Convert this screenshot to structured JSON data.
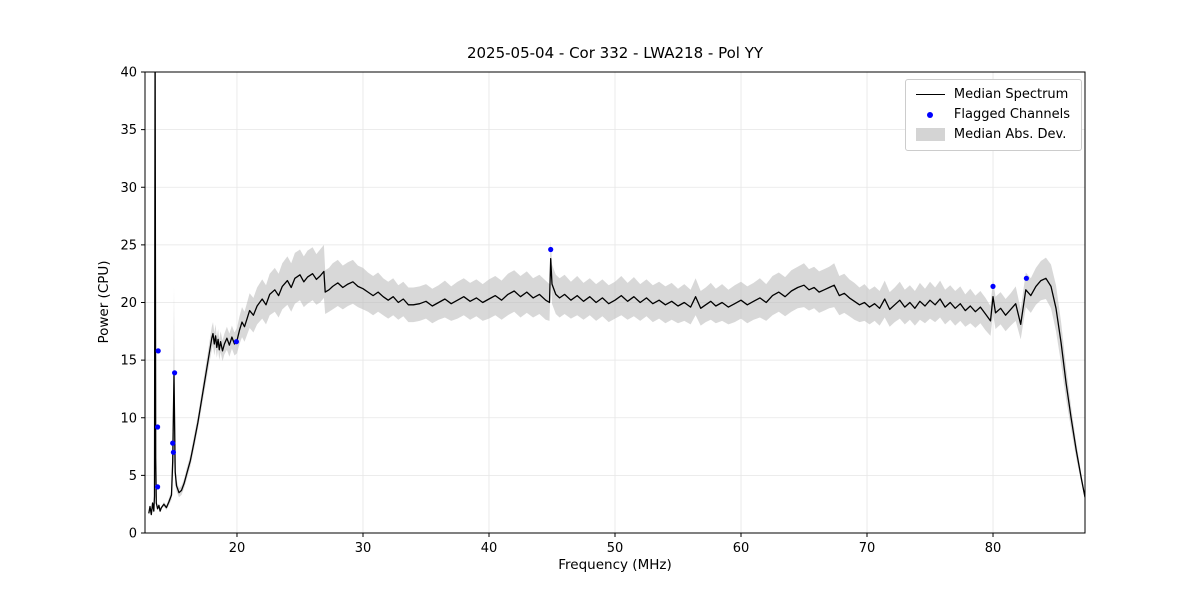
{
  "chart_data": {
    "type": "line",
    "title": "2025-05-04 - Cor 332 - LWA218 - Pol YY",
    "xlabel": "Frequency (MHz)",
    "ylabel": "Power (CPU)",
    "xlim": [
      12.7,
      87.3
    ],
    "ylim": [
      0,
      40
    ],
    "xticks": [
      20,
      30,
      40,
      50,
      60,
      70,
      80
    ],
    "yticks": [
      0,
      5,
      10,
      15,
      20,
      25,
      30,
      35,
      40
    ],
    "grid": true,
    "legend": [
      {
        "label": "Median Spectrum",
        "marker": "line",
        "color": "#000000"
      },
      {
        "label": "Flagged Channels",
        "marker": "dot",
        "color": "#0000ff"
      },
      {
        "label": "Median Abs. Dev.",
        "marker": "patch",
        "color": "#d4d4d4"
      }
    ],
    "colors": {
      "line": "#000000",
      "flagged": "#0000ff",
      "band": "#b8b8b8",
      "band_opacity": 0.55,
      "grid": "#e6e6e6",
      "frame": "#000000"
    },
    "series_note": "spectrum triplets are [frequency_MHz, median_power, median_abs_dev]; band is median±mad",
    "spectrum": [
      [
        13.0,
        1.7,
        0.1
      ],
      [
        13.1,
        2.3,
        0.1
      ],
      [
        13.2,
        1.6,
        0.1
      ],
      [
        13.3,
        2.6,
        0.1
      ],
      [
        13.4,
        1.9,
        0.2
      ],
      [
        13.45,
        3.2,
        0.2
      ],
      [
        13.5,
        44.0,
        0.3
      ],
      [
        13.55,
        6.5,
        0.3
      ],
      [
        13.6,
        2.6,
        0.2
      ],
      [
        13.7,
        2.1,
        0.1
      ],
      [
        13.8,
        2.4,
        0.1
      ],
      [
        13.9,
        1.9,
        0.1
      ],
      [
        14.0,
        2.2,
        0.1
      ],
      [
        14.2,
        2.5,
        0.2
      ],
      [
        14.4,
        2.2,
        0.2
      ],
      [
        14.6,
        2.7,
        0.3
      ],
      [
        14.8,
        3.3,
        0.4
      ],
      [
        14.9,
        6.2,
        1.5
      ],
      [
        15.0,
        13.8,
        7.5
      ],
      [
        15.1,
        5.3,
        1.0
      ],
      [
        15.2,
        4.1,
        0.5
      ],
      [
        15.4,
        3.5,
        0.4
      ],
      [
        15.6,
        3.7,
        0.4
      ],
      [
        15.8,
        4.3,
        0.4
      ],
      [
        16.0,
        5.1,
        0.5
      ],
      [
        16.3,
        6.3,
        0.5
      ],
      [
        16.6,
        7.9,
        0.6
      ],
      [
        16.9,
        9.6,
        0.6
      ],
      [
        17.2,
        11.6,
        0.7
      ],
      [
        17.5,
        13.6,
        0.8
      ],
      [
        17.8,
        15.6,
        0.9
      ],
      [
        18.0,
        16.9,
        1.0
      ],
      [
        18.1,
        17.3,
        1.0
      ],
      [
        18.2,
        16.4,
        1.0
      ],
      [
        18.3,
        17.1,
        1.0
      ],
      [
        18.4,
        16.1,
        0.9
      ],
      [
        18.5,
        16.8,
        0.9
      ],
      [
        18.6,
        15.9,
        0.9
      ],
      [
        18.7,
        16.6,
        0.9
      ],
      [
        18.85,
        15.8,
        0.9
      ],
      [
        19.0,
        16.4,
        0.9
      ],
      [
        19.2,
        16.9,
        1.0
      ],
      [
        19.4,
        16.3,
        1.0
      ],
      [
        19.6,
        17.0,
        1.0
      ],
      [
        19.8,
        16.4,
        1.0
      ],
      [
        20.0,
        16.7,
        1.1
      ],
      [
        20.2,
        17.6,
        1.2
      ],
      [
        20.4,
        18.3,
        1.3
      ],
      [
        20.6,
        17.9,
        1.3
      ],
      [
        20.8,
        18.6,
        1.4
      ],
      [
        21.0,
        19.3,
        1.5
      ],
      [
        21.3,
        18.9,
        1.5
      ],
      [
        21.6,
        19.7,
        1.6
      ],
      [
        22.0,
        20.3,
        1.7
      ],
      [
        22.3,
        19.8,
        1.7
      ],
      [
        22.6,
        20.7,
        1.8
      ],
      [
        23.0,
        21.1,
        1.9
      ],
      [
        23.3,
        20.6,
        1.9
      ],
      [
        23.6,
        21.4,
        2.0
      ],
      [
        24.0,
        21.9,
        2.1
      ],
      [
        24.3,
        21.3,
        2.1
      ],
      [
        24.6,
        22.1,
        2.2
      ],
      [
        25.0,
        22.4,
        2.2
      ],
      [
        25.3,
        21.8,
        2.2
      ],
      [
        25.6,
        22.2,
        2.3
      ],
      [
        26.0,
        22.5,
        2.3
      ],
      [
        26.3,
        22.0,
        2.2
      ],
      [
        26.6,
        22.3,
        2.3
      ],
      [
        26.9,
        22.7,
        2.3
      ],
      [
        27.0,
        20.9,
        1.9
      ],
      [
        27.3,
        21.1,
        1.9
      ],
      [
        27.6,
        21.4,
        2.0
      ],
      [
        28.0,
        21.7,
        2.0
      ],
      [
        28.4,
        21.3,
        1.9
      ],
      [
        28.8,
        21.6,
        1.9
      ],
      [
        29.2,
        21.8,
        1.9
      ],
      [
        29.6,
        21.4,
        1.8
      ],
      [
        30.0,
        21.2,
        1.8
      ],
      [
        30.4,
        20.9,
        1.7
      ],
      [
        30.8,
        20.6,
        1.7
      ],
      [
        31.2,
        20.9,
        1.7
      ],
      [
        31.6,
        20.5,
        1.6
      ],
      [
        32.0,
        20.2,
        1.6
      ],
      [
        32.4,
        20.5,
        1.6
      ],
      [
        32.8,
        20.0,
        1.5
      ],
      [
        33.2,
        20.3,
        1.5
      ],
      [
        33.6,
        19.8,
        1.5
      ],
      [
        34.0,
        19.8,
        1.5
      ],
      [
        34.5,
        19.9,
        1.5
      ],
      [
        35.0,
        20.1,
        1.5
      ],
      [
        35.5,
        19.7,
        1.5
      ],
      [
        36.0,
        20.0,
        1.5
      ],
      [
        36.5,
        20.3,
        1.6
      ],
      [
        37.0,
        19.9,
        1.5
      ],
      [
        37.5,
        20.2,
        1.6
      ],
      [
        38.0,
        20.5,
        1.6
      ],
      [
        38.5,
        20.1,
        1.6
      ],
      [
        39.0,
        20.4,
        1.6
      ],
      [
        39.5,
        20.0,
        1.6
      ],
      [
        40.0,
        20.3,
        1.7
      ],
      [
        40.5,
        20.6,
        1.7
      ],
      [
        41.0,
        20.2,
        1.7
      ],
      [
        41.5,
        20.7,
        1.8
      ],
      [
        42.0,
        21.0,
        1.8
      ],
      [
        42.5,
        20.5,
        1.8
      ],
      [
        43.0,
        20.9,
        1.8
      ],
      [
        43.5,
        20.4,
        1.7
      ],
      [
        44.0,
        20.7,
        1.7
      ],
      [
        44.5,
        20.2,
        1.7
      ],
      [
        44.8,
        20.0,
        1.6
      ],
      [
        44.9,
        23.8,
        1.6
      ],
      [
        45.0,
        21.6,
        1.7
      ],
      [
        45.3,
        20.7,
        1.7
      ],
      [
        45.6,
        20.4,
        1.7
      ],
      [
        46.0,
        20.7,
        1.7
      ],
      [
        46.5,
        20.2,
        1.6
      ],
      [
        47.0,
        20.6,
        1.7
      ],
      [
        47.5,
        20.1,
        1.6
      ],
      [
        48.0,
        20.5,
        1.6
      ],
      [
        48.5,
        20.0,
        1.6
      ],
      [
        49.0,
        20.4,
        1.6
      ],
      [
        49.5,
        19.9,
        1.6
      ],
      [
        50.0,
        20.2,
        1.6
      ],
      [
        50.5,
        20.6,
        1.7
      ],
      [
        51.0,
        20.1,
        1.6
      ],
      [
        51.5,
        20.5,
        1.7
      ],
      [
        52.0,
        20.0,
        1.6
      ],
      [
        52.5,
        20.4,
        1.6
      ],
      [
        53.0,
        19.9,
        1.6
      ],
      [
        53.5,
        20.2,
        1.6
      ],
      [
        54.0,
        19.8,
        1.6
      ],
      [
        54.5,
        20.1,
        1.6
      ],
      [
        55.0,
        19.7,
        1.5
      ],
      [
        55.5,
        20.0,
        1.6
      ],
      [
        56.0,
        19.6,
        1.5
      ],
      [
        56.4,
        20.5,
        1.6
      ],
      [
        56.8,
        19.5,
        1.5
      ],
      [
        57.2,
        19.8,
        1.5
      ],
      [
        57.6,
        20.1,
        1.6
      ],
      [
        58.0,
        19.7,
        1.5
      ],
      [
        58.5,
        20.0,
        1.6
      ],
      [
        59.0,
        19.6,
        1.5
      ],
      [
        59.5,
        19.9,
        1.6
      ],
      [
        60.0,
        20.2,
        1.6
      ],
      [
        60.5,
        19.8,
        1.6
      ],
      [
        61.0,
        20.1,
        1.6
      ],
      [
        61.5,
        20.4,
        1.7
      ],
      [
        62.0,
        20.0,
        1.6
      ],
      [
        62.5,
        20.6,
        1.7
      ],
      [
        63.0,
        20.9,
        1.7
      ],
      [
        63.5,
        20.5,
        1.7
      ],
      [
        64.0,
        21.0,
        1.8
      ],
      [
        64.5,
        21.3,
        1.8
      ],
      [
        65.0,
        21.5,
        1.9
      ],
      [
        65.4,
        21.1,
        1.8
      ],
      [
        65.8,
        21.3,
        1.8
      ],
      [
        66.2,
        20.9,
        1.8
      ],
      [
        66.6,
        21.1,
        1.8
      ],
      [
        67.0,
        21.3,
        1.8
      ],
      [
        67.4,
        21.5,
        1.9
      ],
      [
        67.8,
        20.6,
        1.7
      ],
      [
        68.2,
        20.8,
        1.7
      ],
      [
        68.6,
        20.4,
        1.6
      ],
      [
        69.0,
        20.1,
        1.6
      ],
      [
        69.4,
        19.8,
        1.5
      ],
      [
        69.8,
        20.0,
        1.6
      ],
      [
        70.2,
        19.6,
        1.5
      ],
      [
        70.6,
        19.9,
        1.5
      ],
      [
        71.0,
        19.5,
        1.5
      ],
      [
        71.4,
        20.3,
        1.6
      ],
      [
        71.8,
        19.4,
        1.5
      ],
      [
        72.2,
        19.8,
        1.5
      ],
      [
        72.6,
        20.2,
        1.6
      ],
      [
        73.0,
        19.6,
        1.5
      ],
      [
        73.4,
        20.0,
        1.5
      ],
      [
        73.8,
        19.5,
        1.5
      ],
      [
        74.2,
        20.1,
        1.6
      ],
      [
        74.6,
        19.7,
        1.5
      ],
      [
        75.0,
        20.2,
        1.6
      ],
      [
        75.4,
        19.8,
        1.5
      ],
      [
        75.8,
        20.3,
        1.6
      ],
      [
        76.2,
        19.6,
        1.5
      ],
      [
        76.6,
        20.0,
        1.5
      ],
      [
        77.0,
        19.5,
        1.5
      ],
      [
        77.4,
        19.9,
        1.5
      ],
      [
        77.8,
        19.3,
        1.4
      ],
      [
        78.2,
        19.7,
        1.5
      ],
      [
        78.6,
        19.2,
        1.4
      ],
      [
        79.0,
        19.6,
        1.4
      ],
      [
        79.4,
        19.0,
        1.4
      ],
      [
        79.8,
        18.4,
        1.3
      ],
      [
        80.0,
        20.5,
        1.5
      ],
      [
        80.2,
        19.1,
        1.4
      ],
      [
        80.6,
        19.5,
        1.4
      ],
      [
        81.0,
        18.9,
        1.4
      ],
      [
        81.4,
        19.4,
        1.4
      ],
      [
        81.8,
        19.9,
        1.5
      ],
      [
        82.2,
        18.1,
        1.3
      ],
      [
        82.6,
        21.1,
        1.5
      ],
      [
        83.0,
        20.6,
        1.5
      ],
      [
        83.4,
        21.4,
        1.6
      ],
      [
        83.8,
        21.9,
        1.7
      ],
      [
        84.2,
        22.1,
        1.8
      ],
      [
        84.6,
        21.4,
        1.9
      ],
      [
        85.0,
        19.5,
        2.0
      ],
      [
        85.4,
        16.5,
        1.8
      ],
      [
        85.8,
        13.0,
        1.4
      ],
      [
        86.2,
        10.0,
        1.0
      ],
      [
        86.6,
        7.2,
        0.7
      ],
      [
        87.0,
        4.8,
        0.4
      ],
      [
        87.3,
        3.1,
        0.2
      ]
    ],
    "flagged": [
      [
        13.7,
        4.0
      ],
      [
        13.7,
        9.2
      ],
      [
        13.75,
        15.8
      ],
      [
        14.9,
        7.8
      ],
      [
        14.95,
        7.0
      ],
      [
        15.05,
        13.9
      ],
      [
        19.95,
        16.6
      ],
      [
        44.9,
        24.6
      ],
      [
        80.0,
        21.4
      ],
      [
        82.65,
        22.1
      ]
    ]
  }
}
